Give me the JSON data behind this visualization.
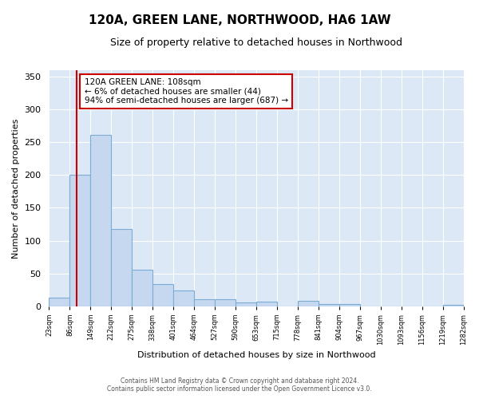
{
  "title": "120A, GREEN LANE, NORTHWOOD, HA6 1AW",
  "subtitle": "Size of property relative to detached houses in Northwood",
  "xlabel": "Distribution of detached houses by size in Northwood",
  "ylabel": "Number of detached properties",
  "bin_edges": [
    23,
    86,
    149,
    212,
    275,
    338,
    401,
    464,
    527,
    590,
    653,
    715,
    778,
    841,
    904,
    967,
    1030,
    1093,
    1156,
    1219,
    1282
  ],
  "bin_labels": [
    "23sqm",
    "86sqm",
    "149sqm",
    "212sqm",
    "275sqm",
    "338sqm",
    "401sqm",
    "464sqm",
    "527sqm",
    "590sqm",
    "653sqm",
    "715sqm",
    "778sqm",
    "841sqm",
    "904sqm",
    "967sqm",
    "1030sqm",
    "1093sqm",
    "1156sqm",
    "1219sqm",
    "1282sqm"
  ],
  "bar_heights": [
    13,
    200,
    262,
    118,
    55,
    34,
    24,
    10,
    10,
    6,
    7,
    0,
    8,
    3,
    3,
    0,
    0,
    0,
    0,
    2
  ],
  "bar_color": "#c5d8f0",
  "bar_edge_color": "#7badd4",
  "property_line_x": 108,
  "property_line_color": "#cc0000",
  "annotation_text": "120A GREEN LANE: 108sqm\n← 6% of detached houses are smaller (44)\n94% of semi-detached houses are larger (687) →",
  "annotation_box_color": "#ffffff",
  "annotation_box_edge_color": "#cc0000",
  "ylim": [
    0,
    360
  ],
  "yticks": [
    0,
    50,
    100,
    150,
    200,
    250,
    300,
    350
  ],
  "fig_bg_color": "#ffffff",
  "plot_bg_color": "#dce8f5",
  "grid_color": "#ffffff",
  "footer_line1": "Contains HM Land Registry data © Crown copyright and database right 2024.",
  "footer_line2": "Contains public sector information licensed under the Open Government Licence v3.0."
}
